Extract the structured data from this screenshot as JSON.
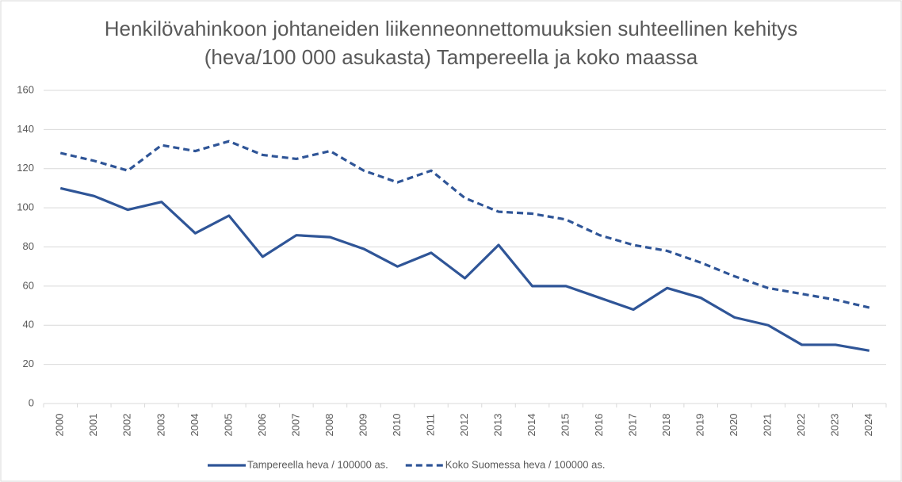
{
  "chart_data": {
    "type": "line",
    "title": "Henkilövahinkoon johtaneiden liikenneonnettomuuksien suhteellinen kehitys (heva/100 000 asukasta) Tampereella ja koko maassa",
    "categories": [
      "2000",
      "2001",
      "2002",
      "2003",
      "2004",
      "2005",
      "2006",
      "2007",
      "2008",
      "2009",
      "2010",
      "2011",
      "2012",
      "2013",
      "2014",
      "2015",
      "2016",
      "2017",
      "2018",
      "2019",
      "2020",
      "2021",
      "2022",
      "2023",
      "2024"
    ],
    "series": [
      {
        "name": "Tampereella heva / 100000 as.",
        "color": "#2f5597",
        "dash": false,
        "values": [
          110,
          106,
          99,
          103,
          87,
          96,
          75,
          86,
          85,
          79,
          70,
          77,
          64,
          81,
          60,
          60,
          54,
          48,
          59,
          54,
          44,
          40,
          30,
          30,
          27
        ]
      },
      {
        "name": "Koko Suomessa heva / 100000 as.",
        "color": "#2f5597",
        "dash": true,
        "values": [
          128,
          124,
          119,
          132,
          129,
          134,
          127,
          125,
          129,
          119,
          113,
          119,
          105,
          98,
          97,
          94,
          86,
          81,
          78,
          72,
          65,
          59,
          56,
          53,
          49
        ]
      }
    ],
    "ylim": [
      0,
      160
    ],
    "yticks": [
      0,
      20,
      40,
      60,
      80,
      100,
      120,
      140,
      160
    ],
    "grid": true,
    "legend": "bottom"
  }
}
